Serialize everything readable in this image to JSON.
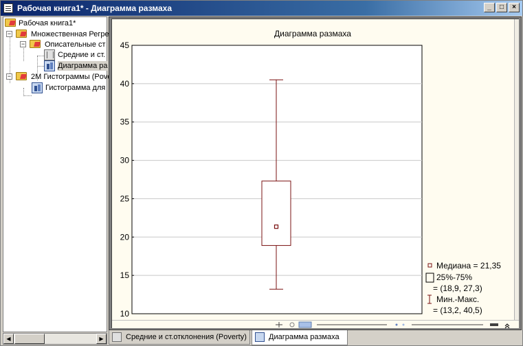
{
  "window": {
    "title": "Рабочая книга1* - Диаграмма размаха",
    "buttons": {
      "minimize": "_",
      "maximize": "□",
      "close": "×"
    }
  },
  "tree": {
    "items": [
      {
        "label": "Рабочая книга1*",
        "icon": "folder-open-icon"
      },
      {
        "label": "Множественная Регре",
        "icon": "folder-icon",
        "expander": "−"
      },
      {
        "label": "Описательные ст",
        "icon": "folder-icon",
        "expander": "−"
      },
      {
        "label": "Средние и ст.",
        "icon": "spreadsheet-icon"
      },
      {
        "label": "Диаграмма ра",
        "icon": "graph-icon"
      },
      {
        "label": "2М Гистограммы (Pover",
        "icon": "folder-icon",
        "expander": "−"
      },
      {
        "label": "Гистограмма для",
        "icon": "graph-icon"
      }
    ]
  },
  "scroll": {
    "left_arrow": "◀",
    "right_arrow": "▶"
  },
  "chart_data": {
    "type": "boxplot",
    "title": "Диаграмма размаха",
    "ylim": [
      10,
      45
    ],
    "yticks": [
      "10",
      "15",
      "20",
      "25",
      "30",
      "35",
      "40",
      "45"
    ],
    "grid": true,
    "box": {
      "median": 21.35,
      "q1": 18.9,
      "q3": 27.3,
      "min": 13.2,
      "max": 40.5
    },
    "colors": {
      "box": "#7a1010",
      "grid": "#c8c8c8"
    },
    "legend": {
      "placement": "bottom-right",
      "median": "Медиана = 21,35",
      "iqr_label": "25%-75%",
      "iqr_value": "= (18,9, 27,3)",
      "range_label": "Мин.-Макс.",
      "range_value": "= (13,2, 40,5)"
    }
  },
  "tabs": [
    {
      "label": "Средние и ст.отклонения (Poverty)",
      "icon": "spreadsheet-icon",
      "active": false
    },
    {
      "label": "Диаграмма размаха",
      "icon": "graph-icon",
      "active": true
    }
  ]
}
